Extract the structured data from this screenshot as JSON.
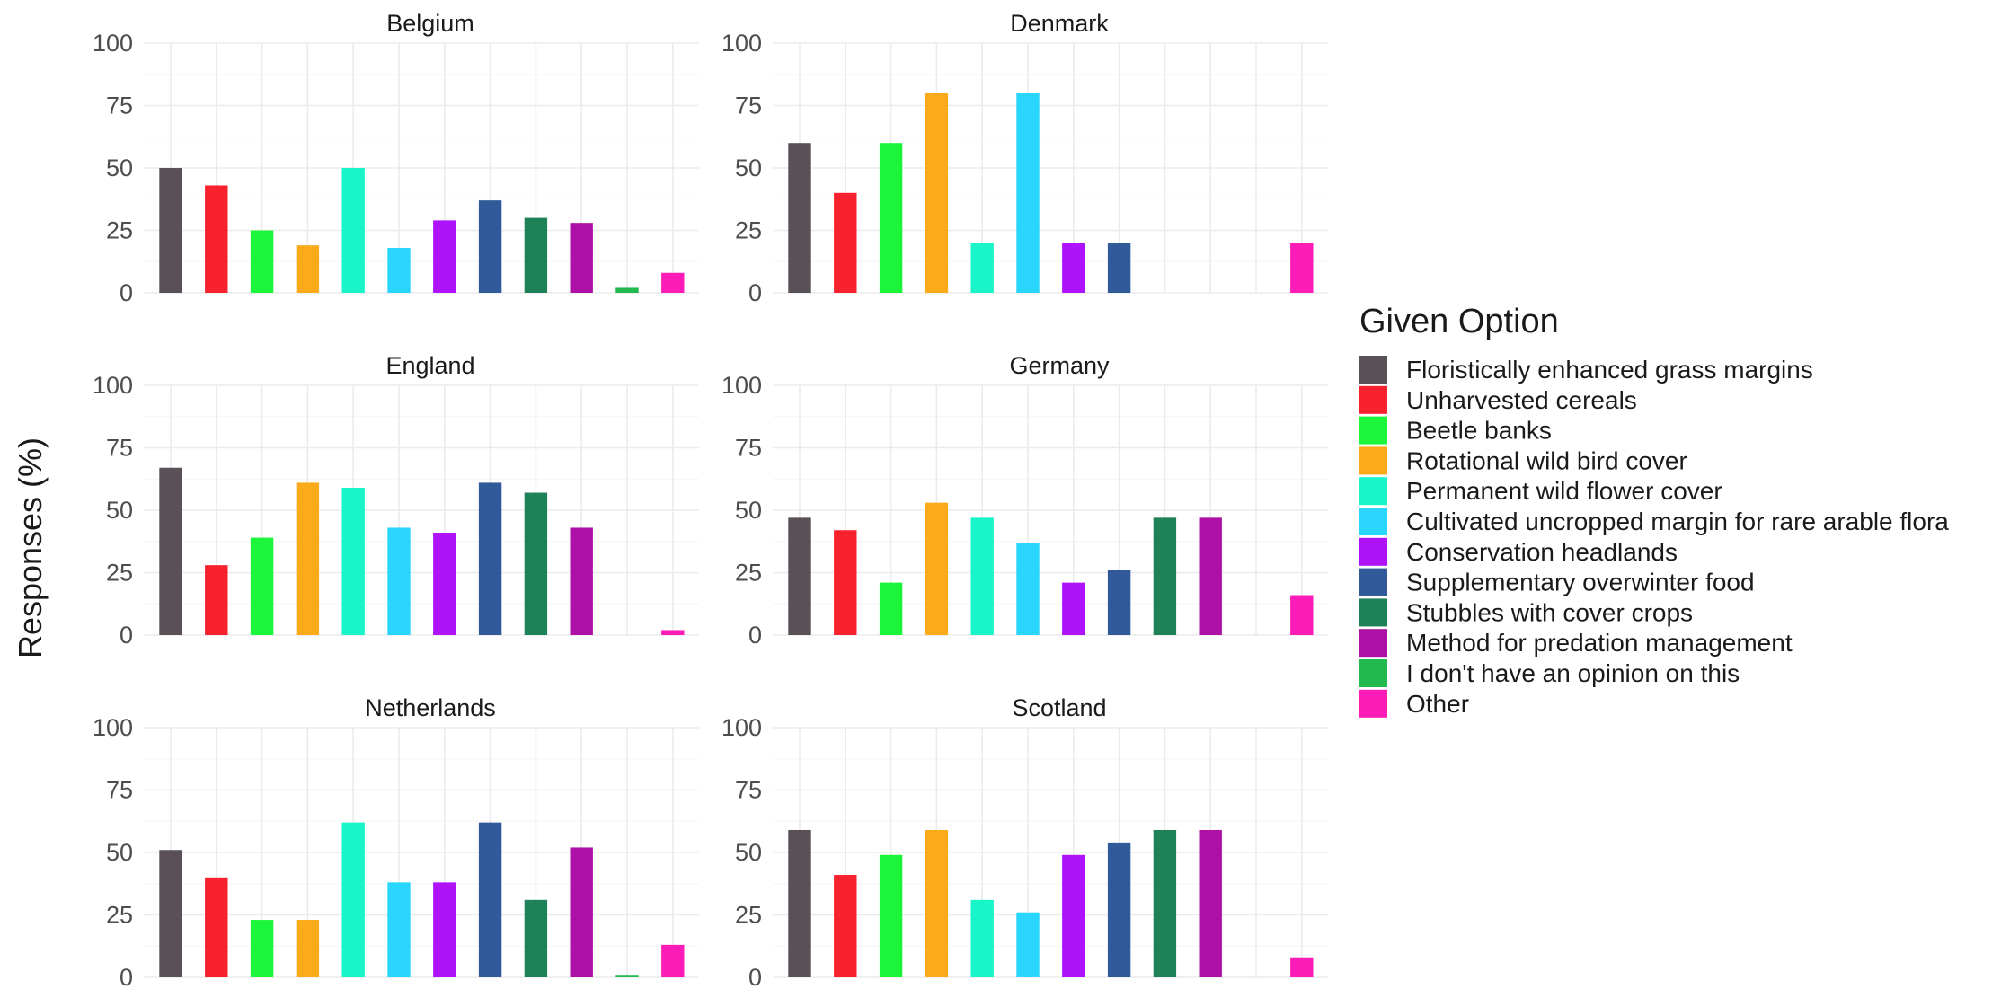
{
  "chart_data": {
    "type": "bar",
    "ylabel": "Responses (%)",
    "ylim": [
      0,
      100
    ],
    "yticks": [
      0,
      25,
      50,
      75,
      100
    ],
    "grid": true,
    "legend": {
      "title": "Given Option",
      "position": "right"
    },
    "categories": [
      "Floristically enhanced grass margins",
      "Unharvested cereals",
      "Beetle banks",
      "Rotational wild bird cover",
      "Permanent wild flower cover",
      "Cultivated uncropped margin for rare arable flora",
      "Conservation headlands",
      "Supplementary overwinter food",
      "Stubbles with cover crops",
      "Method for predation management",
      "I don't have an opinion on this",
      "Other"
    ],
    "colors": [
      "#595157",
      "#f8212e",
      "#1cf63a",
      "#fbaa19",
      "#1af4c9",
      "#2ad6fd",
      "#ae13f9",
      "#315a9a",
      "#1e8158",
      "#ac10a5",
      "#22b94f",
      "#fd1cb8"
    ],
    "panels": [
      {
        "title": "Belgium",
        "values": [
          50,
          43,
          25,
          19,
          50,
          18,
          29,
          37,
          30,
          28,
          2,
          8
        ]
      },
      {
        "title": "Denmark",
        "values": [
          60,
          40,
          60,
          80,
          20,
          80,
          20,
          20,
          0,
          0,
          0,
          20
        ]
      },
      {
        "title": "England",
        "values": [
          67,
          28,
          39,
          61,
          59,
          43,
          41,
          61,
          57,
          43,
          0,
          2
        ]
      },
      {
        "title": "Germany",
        "values": [
          47,
          42,
          21,
          53,
          47,
          37,
          21,
          26,
          47,
          47,
          0,
          16
        ]
      },
      {
        "title": "Netherlands",
        "values": [
          51,
          40,
          23,
          23,
          62,
          38,
          38,
          62,
          31,
          52,
          1,
          13
        ]
      },
      {
        "title": "Scotland",
        "values": [
          59,
          41,
          49,
          59,
          31,
          26,
          49,
          54,
          59,
          59,
          0,
          8
        ]
      }
    ]
  }
}
